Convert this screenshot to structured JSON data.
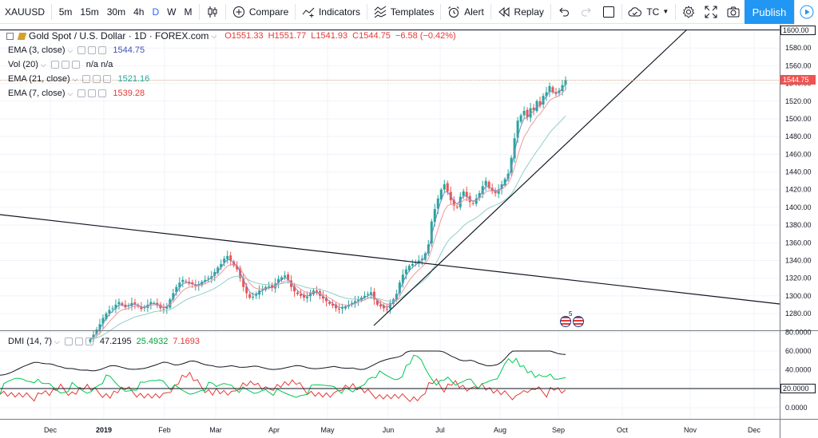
{
  "toolbar": {
    "symbol": "XAUUSD",
    "timeframes": [
      "5m",
      "15m",
      "30m",
      "4h",
      "D",
      "W",
      "M"
    ],
    "active_timeframe": "D",
    "compare_label": "Compare",
    "indicators_label": "Indicators",
    "templates_label": "Templates",
    "alert_label": "Alert",
    "replay_label": "Replay",
    "tc_label": "TC",
    "publish_label": "Publish"
  },
  "main_legend": {
    "title": "Gold Spot / U.S. Dollar · 1D · FOREX.com",
    "open": "O1551.33",
    "high": "H1551.77",
    "low": "L1541.93",
    "close": "C1544.75",
    "change": "−6.58 (−0.42%)"
  },
  "indicators": [
    {
      "label": "EMA (3, close)",
      "value": "1544.75",
      "color": "#3f51b5"
    },
    {
      "label": "Vol (20)",
      "value": "n/a  n/a",
      "color": "#131722"
    },
    {
      "label": "EMA (21, close)",
      "value": "1521.16",
      "color": "#26a69a"
    },
    {
      "label": "EMA (7, close)",
      "value": "1539.28",
      "color": "#e53935"
    }
  ],
  "dmi": {
    "label": "DMI (14, 7)",
    "adx": "47.2195",
    "plus_di": "25.4932",
    "minus_di": "7.1693",
    "adx_color": "#131722",
    "plus_color": "#00c853",
    "minus_color": "#e53935"
  },
  "price_axis": {
    "ticks": [
      "1600.00",
      "1580.00",
      "1560.00",
      "1540.00",
      "1520.00",
      "1500.00",
      "1480.00",
      "1460.00",
      "1440.00",
      "1420.00",
      "1400.00",
      "1380.00",
      "1360.00",
      "1340.00",
      "1320.00",
      "1300.00",
      "1280.00"
    ],
    "current_price": "1544.75",
    "highlight_tick": "1600.00"
  },
  "dmi_axis": {
    "ticks": [
      "80.0000",
      "60.0000",
      "40.0000",
      "20.0000",
      "0.0000"
    ],
    "highlight_tick": "20.0000"
  },
  "time_axis": [
    "Dec",
    "2019",
    "Feb",
    "Mar",
    "Apr",
    "May",
    "Jun",
    "Jul",
    "Aug",
    "Sep",
    "Oct",
    "Nov",
    "Dec"
  ],
  "events_badge": "5",
  "colors": {
    "up": "#26a69a",
    "down": "#ef5350",
    "accent": "#2962ff",
    "publish": "#2196f3"
  },
  "chart_data": {
    "type": "candlestick",
    "price_range": [
      1262,
      1602
    ],
    "dmi_range": [
      -8,
      84
    ],
    "closes": [
      1251,
      1256,
      1262,
      1268,
      1275,
      1280,
      1284,
      1286,
      1290,
      1293,
      1290,
      1287,
      1289,
      1292,
      1291,
      1288,
      1285,
      1287,
      1290,
      1293,
      1292,
      1289,
      1286,
      1285,
      1288,
      1296,
      1303,
      1310,
      1315,
      1318,
      1316,
      1314,
      1313,
      1311,
      1313,
      1316,
      1318,
      1320,
      1322,
      1327,
      1332,
      1336,
      1342,
      1345,
      1340,
      1334,
      1330,
      1320,
      1310,
      1303,
      1298,
      1299,
      1302,
      1306,
      1308,
      1310,
      1311,
      1309,
      1314,
      1319,
      1321,
      1323,
      1318,
      1310,
      1305,
      1302,
      1300,
      1298,
      1299,
      1303,
      1306,
      1304,
      1300,
      1297,
      1294,
      1291,
      1289,
      1286,
      1285,
      1287,
      1288,
      1290,
      1292,
      1294,
      1296,
      1298,
      1300,
      1302,
      1304,
      1296,
      1290,
      1288,
      1286,
      1285,
      1292,
      1296,
      1302,
      1315,
      1324,
      1330,
      1334,
      1336,
      1338,
      1340,
      1342,
      1348,
      1358,
      1384,
      1398,
      1410,
      1420,
      1426,
      1418,
      1408,
      1402,
      1400,
      1412,
      1418,
      1412,
      1406,
      1404,
      1410,
      1416,
      1424,
      1430,
      1422,
      1418,
      1416,
      1420,
      1426,
      1432,
      1438,
      1456,
      1478,
      1498,
      1504,
      1509,
      1502,
      1512,
      1510,
      1520,
      1515,
      1526,
      1530,
      1537,
      1530,
      1528,
      1532,
      1538,
      1544
    ]
  }
}
